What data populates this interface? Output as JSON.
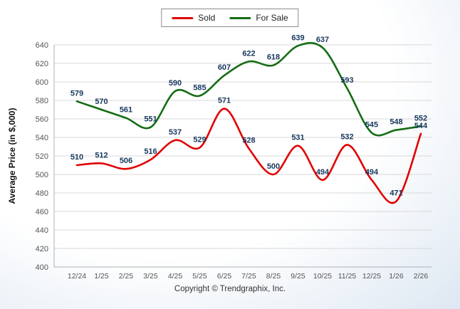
{
  "page": {
    "copyright": "Copyright © Trendgraphix, Inc."
  },
  "chart_data": {
    "type": "line",
    "title": "",
    "xlabel": "",
    "ylabel": "Average Price (in $,000)",
    "ylim": [
      400,
      640
    ],
    "ytick_step": 20,
    "grid": true,
    "legend_position": "top-center",
    "categories": [
      "12/24",
      "1/25",
      "2/25",
      "3/25",
      "4/25",
      "5/25",
      "6/25",
      "7/25",
      "8/25",
      "9/25",
      "10/25",
      "11/25",
      "12/25",
      "1/26",
      "2/26"
    ],
    "series": [
      {
        "name": "Sold",
        "color": "#e10000",
        "values": [
          510,
          512,
          506,
          516,
          537,
          529,
          571,
          528,
          500,
          531,
          494,
          532,
          494,
          471,
          544
        ]
      },
      {
        "name": "For Sale",
        "color": "#146c14",
        "values": [
          579,
          570,
          561,
          551,
          590,
          585,
          607,
          622,
          618,
          639,
          637,
          593,
          545,
          548,
          552
        ]
      }
    ],
    "data_label_color": "#17375d",
    "axis_text_color": "#555555",
    "gridline_color": "#d8d8d8",
    "axis_line_color": "#b0b0b0"
  }
}
